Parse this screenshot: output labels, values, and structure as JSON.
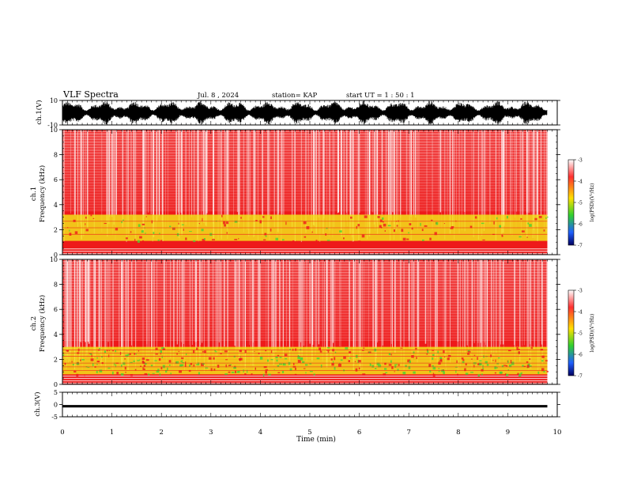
{
  "header": {
    "title": "VLF Spectra",
    "date": "Jul. 8 , 2024",
    "station": "station= KAP",
    "start": "start UT = 1 : 50 : 1"
  },
  "colors": {
    "background": "#ffffff",
    "axis": "#000000",
    "spectro_base": "#ee1a1a",
    "spectro_band": "#f2e21a",
    "spectro_green": "#48d232"
  },
  "colorbar": {
    "label": "log(PSD)(V²/Hz)",
    "ticks": [
      "-3",
      "-4",
      "-5",
      "-6",
      "-7"
    ],
    "stops": [
      "#ffffff",
      "#ff3030",
      "#ffe000",
      "#30d030",
      "#2060ff",
      "#000060"
    ]
  },
  "chart_data": [
    {
      "type": "line",
      "name": "ch1-waveform",
      "ylabel": "ch.1(V)",
      "ylim": [
        -10,
        10
      ],
      "y_tick_labels": [
        "10",
        "-10"
      ],
      "xlim": [
        0,
        10
      ]
    },
    {
      "type": "heatmap",
      "name": "ch1-spectrogram",
      "ylabel": "ch.1\nFrequency (kHz)",
      "ylim": [
        0,
        10
      ],
      "y_tick_labels": [
        "0",
        "2",
        "4",
        "6",
        "8",
        "10"
      ],
      "xlim": [
        0,
        10
      ],
      "data_end_x": 9.8,
      "bands_khz": [
        {
          "from": 0,
          "to": 0.5,
          "level": "banded"
        },
        {
          "from": 1.1,
          "to": 3.2,
          "level": "high"
        }
      ]
    },
    {
      "type": "heatmap",
      "name": "ch2-spectrogram",
      "ylabel": "ch.2\nFrequency (kHz)",
      "ylim": [
        0,
        10
      ],
      "y_tick_labels": [
        "0",
        "2",
        "4",
        "6",
        "8",
        "10"
      ],
      "xlim": [
        0,
        10
      ],
      "data_end_x": 9.8,
      "bands_khz": [
        {
          "from": 0,
          "to": 0.7,
          "level": "banded"
        },
        {
          "from": 0.8,
          "to": 2.0,
          "level": "highest"
        },
        {
          "from": 2.0,
          "to": 3.0,
          "level": "high"
        }
      ]
    },
    {
      "type": "line",
      "name": "ch3-waveform",
      "ylabel": "ch.3(V)",
      "ylim": [
        -5,
        5
      ],
      "y_tick_labels": [
        "5",
        "0",
        "-5"
      ],
      "xlim": [
        0,
        10
      ],
      "level_v": [
        -1.2,
        -0.2
      ]
    }
  ],
  "x_axis": {
    "label": "Time (min)",
    "ticks": [
      "0",
      "1",
      "2",
      "3",
      "4",
      "5",
      "6",
      "7",
      "8",
      "9",
      "10"
    ],
    "range": [
      0,
      10
    ]
  }
}
